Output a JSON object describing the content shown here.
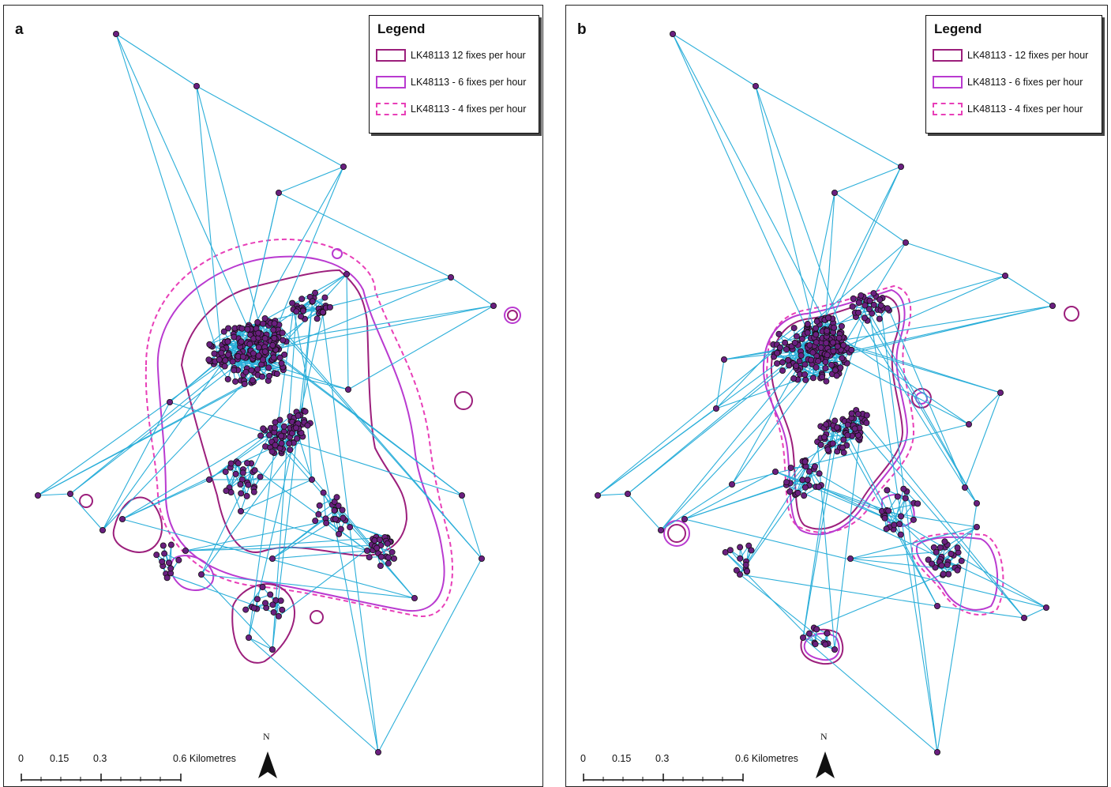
{
  "panels": [
    {
      "id": "a",
      "label": "a",
      "legend": {
        "title": "Legend",
        "items": [
          {
            "label": "LK48113 12 fixes per hour",
            "style": "solid",
            "color": "#9c1f7c"
          },
          {
            "label": "LK48113 - 6 fixes per hour",
            "style": "solid",
            "color": "#b93ad0"
          },
          {
            "label": "LK48113 - 4 fixes per hour",
            "style": "dashed",
            "color": "#e83fb8"
          }
        ]
      },
      "scale_bar": {
        "ticks": [
          "0",
          "0.15",
          "0.3",
          "0.6"
        ],
        "unit": "Kilometres"
      },
      "north_arrow": "N"
    },
    {
      "id": "b",
      "label": "b",
      "legend": {
        "title": "Legend",
        "items": [
          {
            "label": "LK48113 - 12 fixes per hour",
            "style": "solid",
            "color": "#9c1f7c"
          },
          {
            "label": "LK48113 - 6 fixes per hour",
            "style": "solid",
            "color": "#b93ad0"
          },
          {
            "label": "LK48113 - 4 fixes per hour",
            "style": "dashed",
            "color": "#e83fb8"
          }
        ]
      },
      "scale_bar": {
        "ticks": [
          "0",
          "0.15",
          "0.3",
          "0.6"
        ],
        "unit": "Kilometres"
      },
      "north_arrow": "N"
    }
  ],
  "colors": {
    "track_line": "#2aaed9",
    "fix_point": "#6a1f7f",
    "fix_outline": "#111111",
    "kernel_12": "#9c1f7c",
    "kernel_6": "#b93ad0",
    "kernel_4": "#e83fb8"
  }
}
